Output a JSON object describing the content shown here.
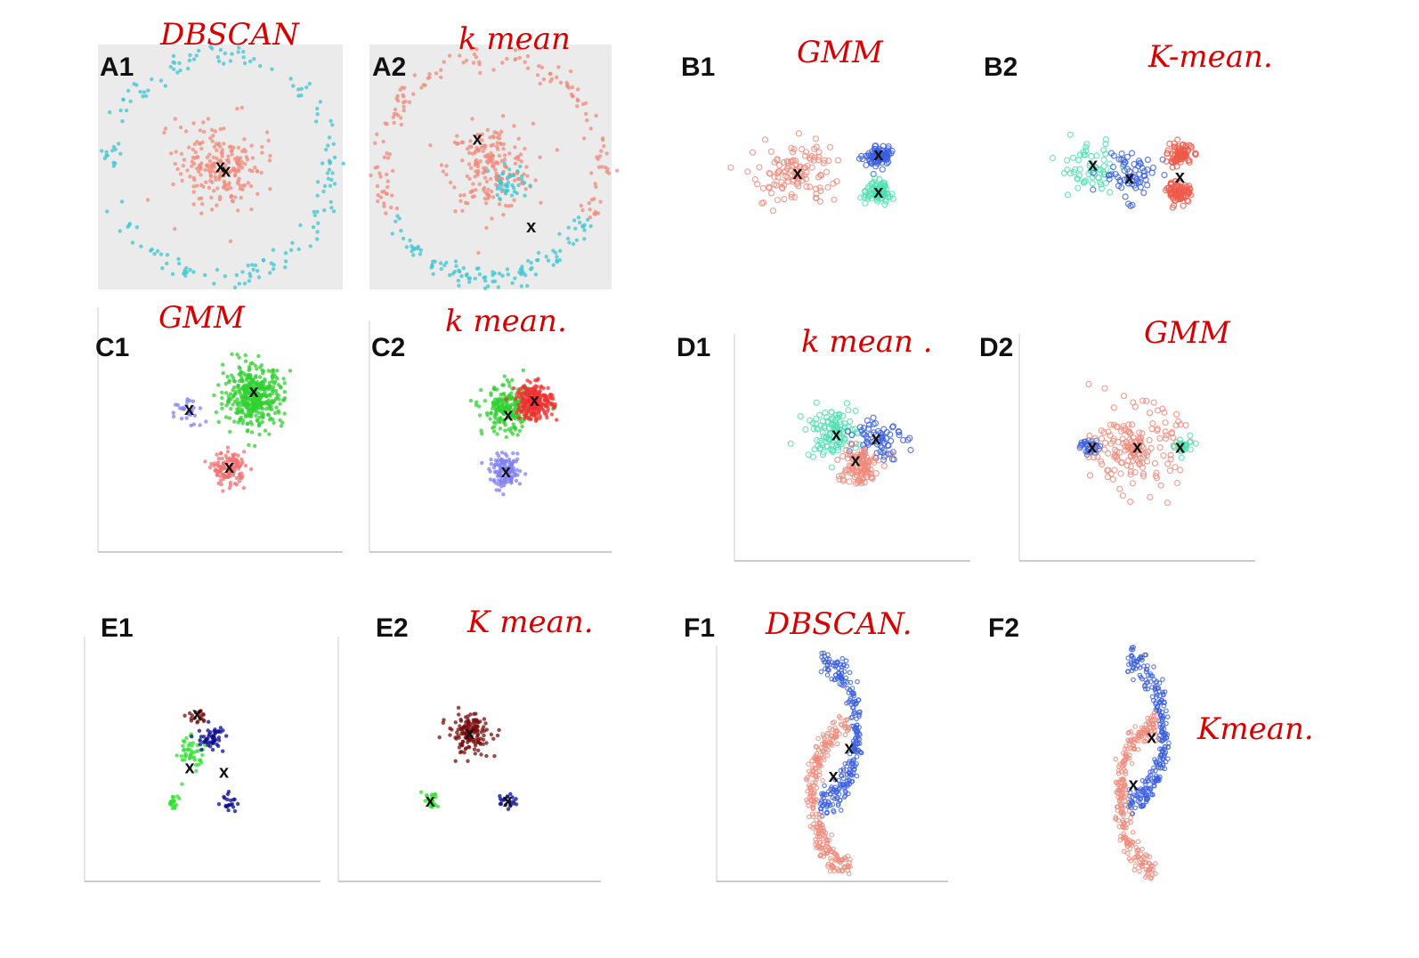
{
  "chart_data": [
    {
      "id": "A1",
      "type": "scatter",
      "label": "A1",
      "note": "DBSCAN",
      "bg": "gray",
      "clusters": [
        {
          "color": "#3cc6d0",
          "shape": "ring",
          "cx": 0,
          "cy": 0,
          "r": 10,
          "n": 170
        },
        {
          "color": "#f08a7a",
          "shape": "blob",
          "cx": 0,
          "cy": 0,
          "r": 3.2,
          "n": 220
        }
      ],
      "centroids": [
        [
          0,
          0
        ],
        [
          0.5,
          -0.4
        ]
      ]
    },
    {
      "id": "A2",
      "type": "scatter",
      "label": "A2",
      "note": "k mean",
      "bg": "gray",
      "clusters": [
        {
          "color": "#f08a7a",
          "shape": "arc-top",
          "cx": 0,
          "cy": 0,
          "r": 10,
          "n": 150
        },
        {
          "color": "#f08a7a",
          "shape": "blob",
          "cx": 0,
          "cy": 0,
          "r": 3.2,
          "n": 200
        },
        {
          "color": "#3cc6d0",
          "shape": "arc-bottom",
          "cx": 0,
          "cy": 0,
          "r": 10,
          "n": 110
        },
        {
          "color": "#3cc6d0",
          "shape": "blob",
          "cx": 1.5,
          "cy": -1.8,
          "r": 1.5,
          "n": 40
        }
      ],
      "centroids": [
        [
          -1.2,
          2.5
        ],
        [
          3.7,
          -5.4
        ]
      ]
    },
    {
      "id": "B1",
      "type": "scatter",
      "label": "B1",
      "note": "GMM",
      "bg": "white",
      "clusters": [
        {
          "color": "#f08a7a",
          "shape": "ring-open",
          "cx": -3,
          "cy": 0,
          "r": 4,
          "n": 120
        },
        {
          "color": "#3a5ee0",
          "shape": "blob-open",
          "cx": 5,
          "cy": 2.2,
          "r": 1.0,
          "n": 90
        },
        {
          "color": "#4fe0b0",
          "shape": "blob-open",
          "cx": 5,
          "cy": -2.2,
          "r": 1.0,
          "n": 90
        }
      ],
      "centroids": [
        [
          -3,
          0
        ],
        [
          5,
          2.2
        ],
        [
          5,
          -2.2
        ]
      ]
    },
    {
      "id": "B2",
      "type": "scatter",
      "label": "B2",
      "note": "K-mean.",
      "bg": "white",
      "clusters": [
        {
          "color": "#4fe0b0",
          "shape": "blob-open",
          "cx": -5,
          "cy": 0.5,
          "r": 2.5,
          "n": 60
        },
        {
          "color": "#3a5ee0",
          "shape": "blob-open",
          "cx": -1,
          "cy": 0,
          "r": 2.4,
          "n": 70
        },
        {
          "color": "#f05a4a",
          "shape": "blob-open",
          "cx": 4,
          "cy": 2.2,
          "r": 1.0,
          "n": 90
        },
        {
          "color": "#f05a4a",
          "shape": "blob-open",
          "cx": 4,
          "cy": -2.2,
          "r": 1.0,
          "n": 90
        }
      ],
      "centroids": [
        [
          -4.6,
          1
        ],
        [
          -1,
          -0.6
        ],
        [
          4,
          -0.4
        ]
      ]
    },
    {
      "id": "C1",
      "type": "scatter",
      "label": "C1",
      "note": "GMM",
      "bg": "white",
      "clusters": [
        {
          "color": "#30d030",
          "shape": "blob",
          "cx": 3,
          "cy": 3,
          "r": 2.2,
          "n": 420
        },
        {
          "color": "#8080f0",
          "shape": "blob",
          "cx": -3,
          "cy": 1.5,
          "r": 1.3,
          "n": 30
        },
        {
          "color": "#f07070",
          "shape": "blob",
          "cx": 0.8,
          "cy": -3.5,
          "r": 1.2,
          "n": 130
        }
      ],
      "centroids": [
        [
          3,
          3.4
        ],
        [
          -2.8,
          1.8
        ],
        [
          0.8,
          -3.4
        ]
      ]
    },
    {
      "id": "C2",
      "type": "scatter",
      "label": "C2",
      "note": "k mean.",
      "bg": "white",
      "clusters": [
        {
          "color": "#30d030",
          "shape": "blob",
          "cx": 1.6,
          "cy": 2.5,
          "r": 1.9,
          "n": 220
        },
        {
          "color": "#f03030",
          "shape": "blob",
          "cx": 4,
          "cy": 3.3,
          "r": 1.4,
          "n": 240
        },
        {
          "color": "#8080f0",
          "shape": "blob",
          "cx": 1.4,
          "cy": -3.4,
          "r": 1.2,
          "n": 130
        }
      ],
      "centroids": [
        [
          4,
          3.4
        ],
        [
          1.6,
          2
        ],
        [
          1.4,
          -3.4
        ]
      ]
    },
    {
      "id": "D1",
      "type": "scatter",
      "label": "D1",
      "note": "k mean .",
      "bg": "white",
      "clusters": [
        {
          "color": "#4fe0b0",
          "shape": "blob-open",
          "cx": -2,
          "cy": 1.5,
          "r": 2.0,
          "n": 110
        },
        {
          "color": "#3a5ee0",
          "shape": "blob-open",
          "cx": 2.5,
          "cy": 1,
          "r": 1.8,
          "n": 70
        },
        {
          "color": "#f08a7a",
          "shape": "blob-open",
          "cx": 0.5,
          "cy": -1.8,
          "r": 1.6,
          "n": 110
        }
      ],
      "centroids": [
        [
          -1.5,
          1.2
        ],
        [
          2.2,
          0.8
        ],
        [
          0.3,
          -1.3
        ]
      ]
    },
    {
      "id": "D2",
      "type": "scatter",
      "label": "D2",
      "note": "GMM",
      "bg": "white",
      "clusters": [
        {
          "color": "#3a5ee0",
          "shape": "blob-open",
          "cx": -4.5,
          "cy": 0,
          "r": 0.8,
          "n": 30
        },
        {
          "color": "#f08a7a",
          "shape": "blob-open",
          "cx": 0,
          "cy": 0,
          "r": 3.2,
          "n": 170
        },
        {
          "color": "#4fe0b0",
          "shape": "blob-open",
          "cx": 4.3,
          "cy": 0,
          "r": 0.7,
          "n": 28
        }
      ],
      "centroids": [
        [
          -4.2,
          0
        ],
        [
          0,
          0
        ],
        [
          4,
          0
        ]
      ]
    },
    {
      "id": "E1",
      "type": "scatter",
      "label": "E1",
      "note": "",
      "bg": "white",
      "clusters": [
        {
          "color": "#7a0e0e",
          "shape": "blob",
          "cx": -0.5,
          "cy": 3.8,
          "r": 0.8,
          "n": 20
        },
        {
          "color": "#30e030",
          "shape": "blob",
          "cx": -1.2,
          "cy": 0.6,
          "r": 1.2,
          "n": 45
        },
        {
          "color": "#0a0a90",
          "shape": "blob",
          "cx": 0.8,
          "cy": 1.8,
          "r": 1.0,
          "n": 50
        },
        {
          "color": "#30e030",
          "shape": "blob",
          "cx": -2.6,
          "cy": -3.8,
          "r": 0.6,
          "n": 20
        },
        {
          "color": "#0a0a90",
          "shape": "blob",
          "cx": 2.5,
          "cy": -3.8,
          "r": 0.6,
          "n": 20
        }
      ],
      "centroids": [
        [
          -0.5,
          4
        ],
        [
          -1.2,
          -0.8
        ],
        [
          2,
          -1.2
        ]
      ]
    },
    {
      "id": "E2",
      "type": "scatter",
      "label": "E2",
      "note": "K mean.",
      "bg": "white",
      "clusters": [
        {
          "color": "#7a0e0e",
          "shape": "blob",
          "cx": 0,
          "cy": 2.3,
          "r": 1.5,
          "n": 150
        },
        {
          "color": "#30e030",
          "shape": "blob",
          "cx": -3.3,
          "cy": -3.8,
          "r": 0.6,
          "n": 20
        },
        {
          "color": "#0a0a90",
          "shape": "blob",
          "cx": 3.2,
          "cy": -3.8,
          "r": 0.6,
          "n": 22
        }
      ],
      "centroids": [
        [
          0,
          2.3
        ],
        [
          -3.3,
          -3.8
        ],
        [
          3.2,
          -3.8
        ]
      ]
    },
    {
      "id": "F1",
      "type": "scatter",
      "label": "F1",
      "note": "DBSCAN.",
      "bg": "white",
      "clusters": [
        {
          "color": "#3a5ee0",
          "shape": "moon-right",
          "cx": 0.8,
          "cy": 1.5,
          "r": 3,
          "n": 260
        },
        {
          "color": "#f08a7a",
          "shape": "moon-left",
          "cx": -0.3,
          "cy": -1.5,
          "r": 3,
          "n": 260
        }
      ],
      "centroids": [
        [
          1.6,
          1.4
        ],
        [
          0.1,
          -1.2
        ]
      ]
    },
    {
      "id": "F2",
      "type": "scatter",
      "label": "F2",
      "note": "Kmean.",
      "bg": "white",
      "clusters": [
        {
          "color": "#3a5ee0",
          "shape": "moon-right",
          "cx": 0.8,
          "cy": 1.5,
          "r": 3,
          "n": 260
        },
        {
          "color": "#f08a7a",
          "shape": "moon-left",
          "cx": -0.3,
          "cy": -1.5,
          "r": 3,
          "n": 260
        }
      ],
      "centroids": [
        [
          1.2,
          2.4
        ],
        [
          -0.6,
          -2
        ]
      ]
    }
  ],
  "centroid_symbol": "x"
}
